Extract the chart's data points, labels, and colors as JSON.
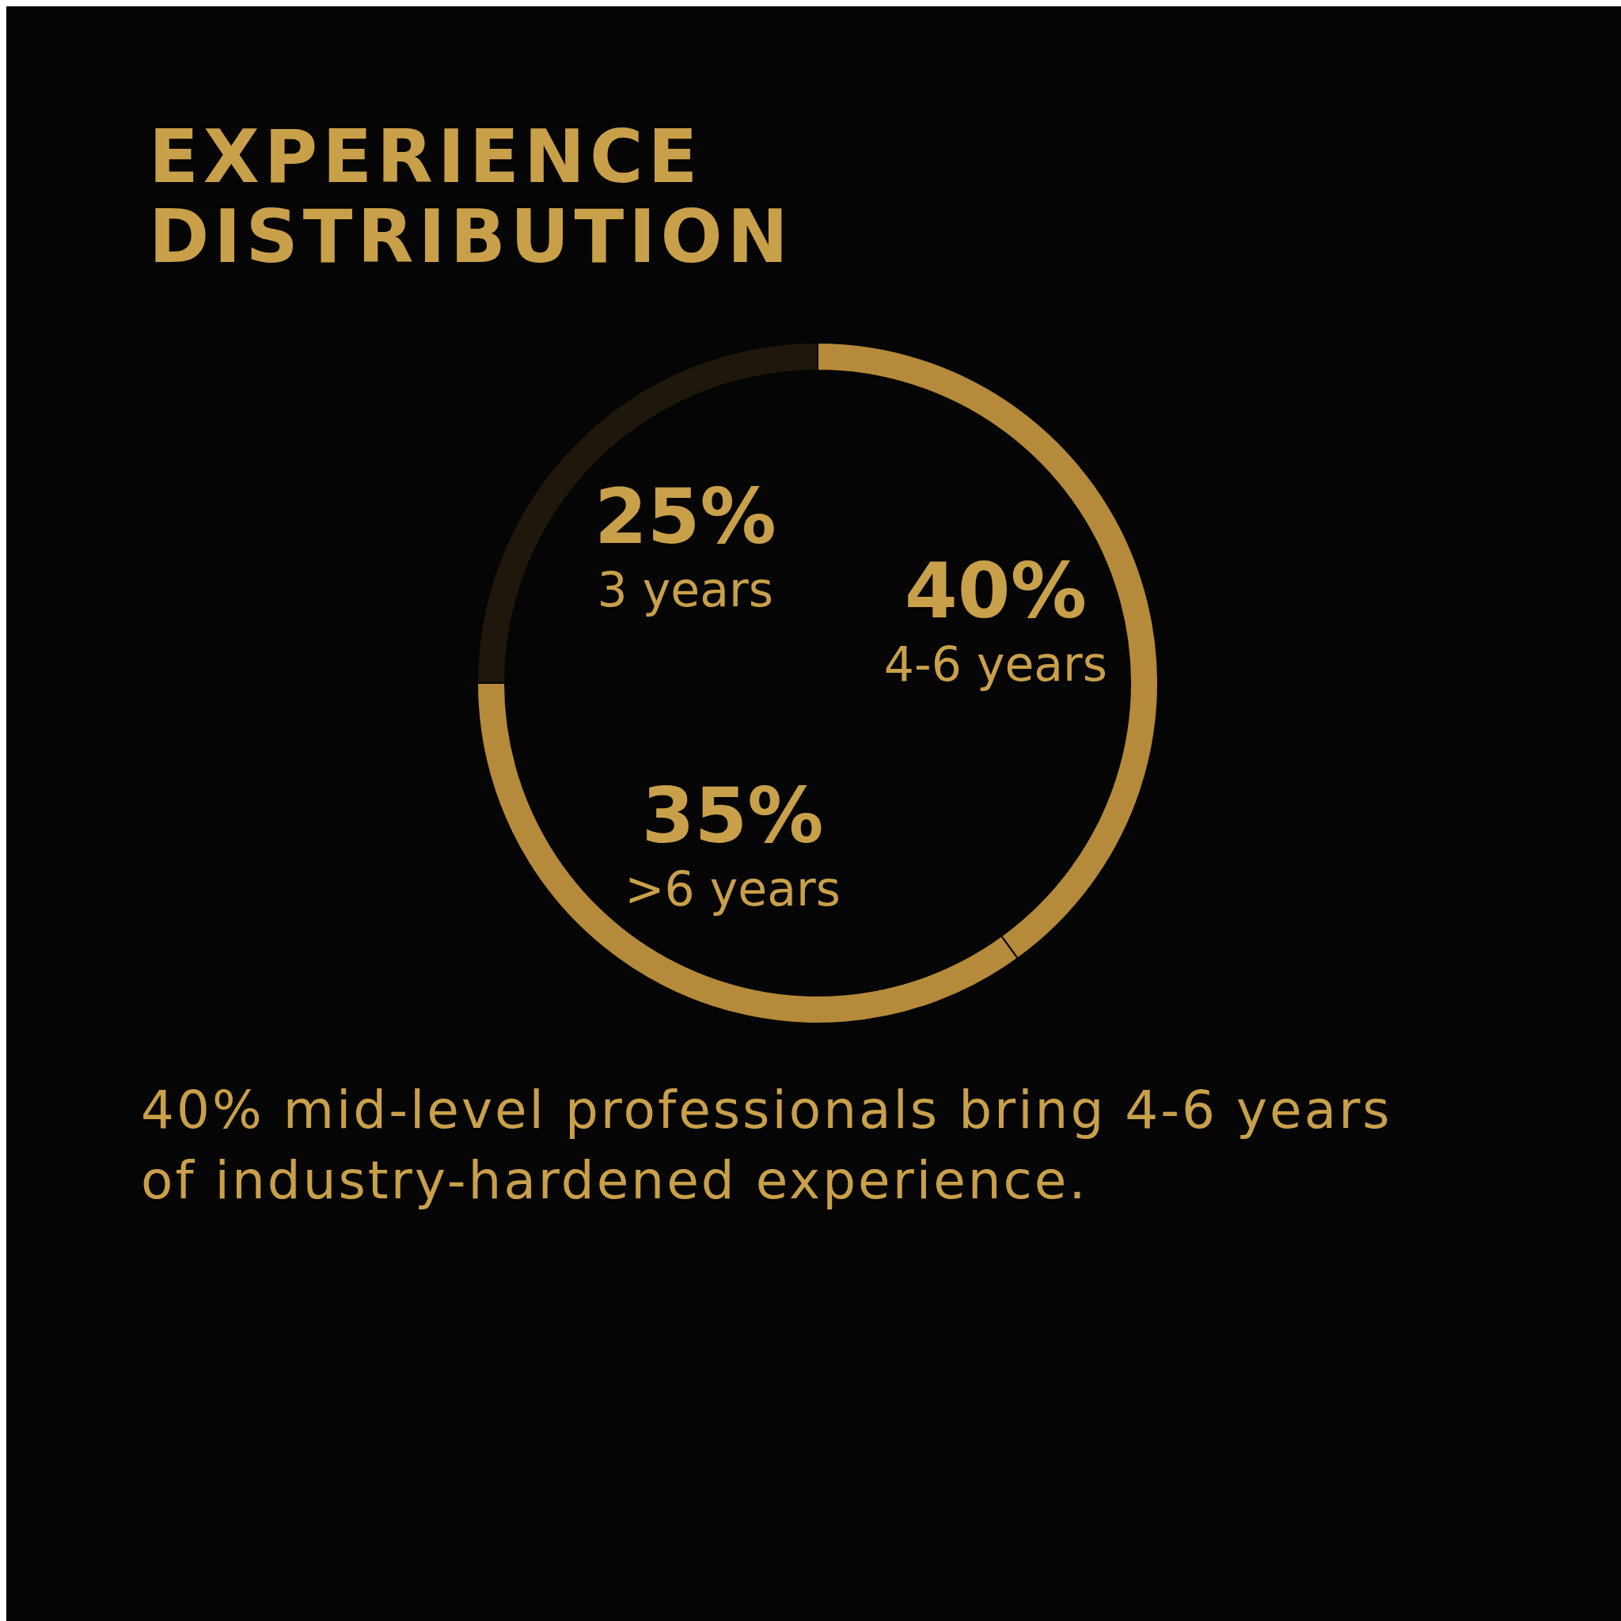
{
  "chart_data": {
    "type": "donut",
    "title": "EXPERIENCE DISTRIBUTION",
    "categories": [
      "4-6 years",
      ">6 years",
      "3 years"
    ],
    "values": [
      40,
      35,
      25
    ],
    "value_labels": [
      "40%",
      "35%",
      "25%"
    ],
    "colors": [
      "#b58a3a",
      "#b58a3a",
      "#1f170b"
    ],
    "legend": false,
    "annotations": [
      "40% mid-level professionals bring 4-6 years of industry-hardened experience."
    ]
  }
}
